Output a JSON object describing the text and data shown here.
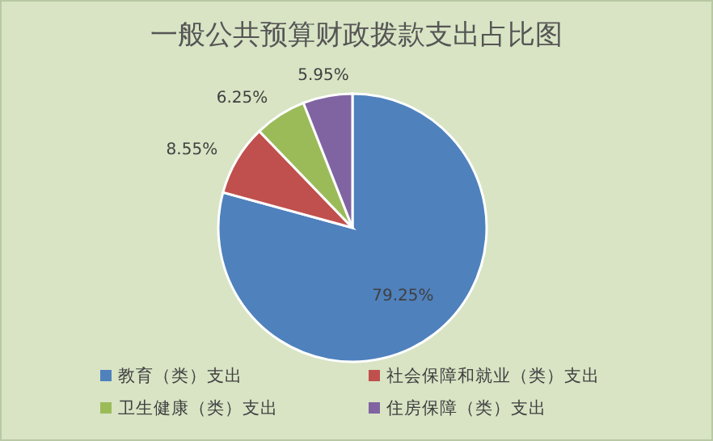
{
  "chart_data": {
    "type": "pie",
    "title": "一般公共预算财政拨款支出占比图",
    "categories": [
      "教育（类）支出",
      "社会保障和就业（类）支出",
      "卫生健康（类）支出",
      "住房保障（类）支出"
    ],
    "values": [
      79.25,
      8.55,
      6.25,
      5.95
    ],
    "value_labels": [
      "79.25%",
      "8.55%",
      "6.25%",
      "5.95%"
    ],
    "colors": [
      "#4f81bd",
      "#c0504d",
      "#9bbb59",
      "#8064a2"
    ],
    "legend": "bottom"
  }
}
